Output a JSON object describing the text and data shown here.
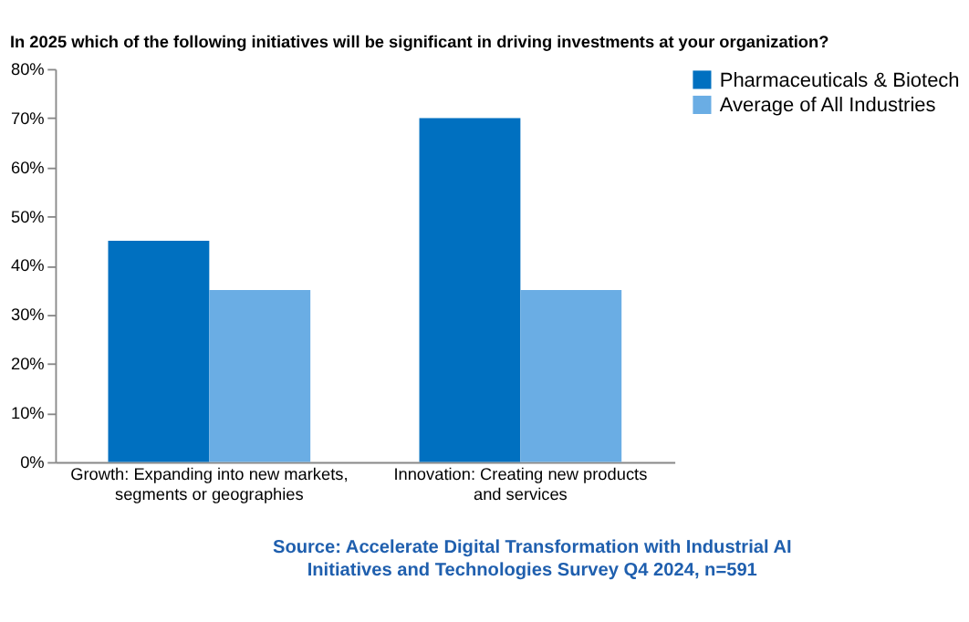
{
  "chart_data": {
    "type": "bar",
    "title": "In 2025 which of the following initiatives will be significant in driving investments at your organization?",
    "categories": [
      "Growth: Expanding into new markets, segments or geographies",
      "Innovation: Creating new products and services"
    ],
    "series": [
      {
        "name": "Pharmaceuticals & Biotech",
        "color": "#0070c0",
        "values": [
          45,
          70
        ]
      },
      {
        "name": "Average of All Industries",
        "color": "#6aade4",
        "values": [
          35,
          35
        ]
      }
    ],
    "ylim": [
      0,
      80
    ],
    "yticks": [
      {
        "value": 0,
        "label": "0%"
      },
      {
        "value": 10,
        "label": "10%"
      },
      {
        "value": 20,
        "label": "20%"
      },
      {
        "value": 30,
        "label": "30%"
      },
      {
        "value": 40,
        "label": "40%"
      },
      {
        "value": 50,
        "label": "50%"
      },
      {
        "value": 60,
        "label": "60%"
      },
      {
        "value": 70,
        "label": "70%"
      },
      {
        "value": 80,
        "label": "80%"
      }
    ],
    "grid": false,
    "legend": "right",
    "annotations": [
      "Source:  Accelerate Digital Transformation with Industrial AI Initiatives and Technologies Survey Q4 2024, n=591"
    ]
  }
}
